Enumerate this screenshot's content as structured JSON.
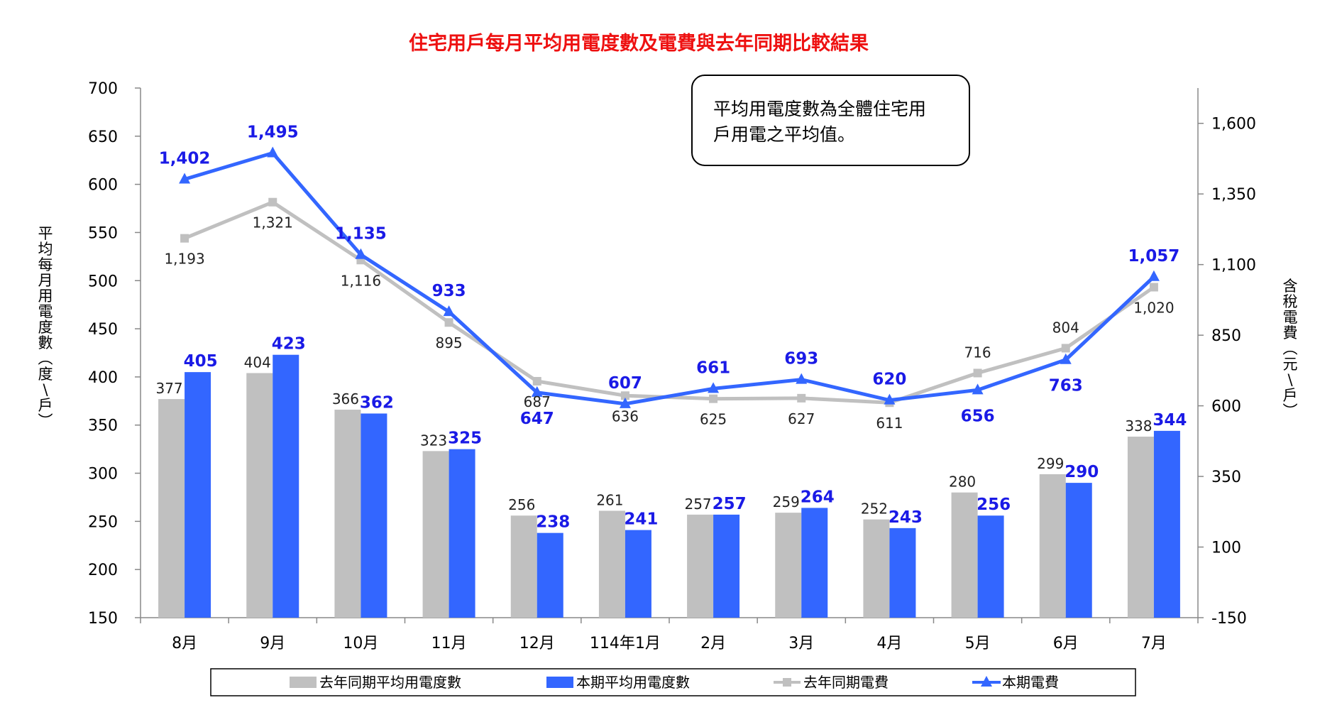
{
  "chart_data": {
    "type": "bar+line",
    "title": "住宅用戶每月平均用電度數及電費與去年同期比較結果",
    "categories": [
      "8月",
      "9月",
      "10月",
      "11月",
      "12月",
      "114年1月",
      "2月",
      "3月",
      "4月",
      "5月",
      "6月",
      "7月"
    ],
    "left_axis": {
      "label": "平均每月用電度數（度\\戶）",
      "label_chars": [
        "平",
        "均",
        "每",
        "月",
        "用",
        "電",
        "度",
        "數",
        "︵",
        "度",
        "\\",
        "戶",
        "︶"
      ],
      "range": [
        150,
        700
      ],
      "ticks": [
        150,
        200,
        250,
        300,
        350,
        400,
        450,
        500,
        550,
        600,
        650,
        700
      ]
    },
    "right_axis": {
      "label": "含稅電費（元\\戶）",
      "label_chars": [
        "含",
        "稅",
        "電",
        "費",
        "︵",
        "元",
        "\\",
        "戶",
        "︶"
      ],
      "range": [
        -150,
        1725
      ],
      "ticks": [
        -150,
        100,
        350,
        600,
        850,
        1100,
        1350,
        1600
      ],
      "tick_labels": [
        "-150",
        "100",
        "350",
        "600",
        "850",
        "1,100",
        "1,350",
        "1,600"
      ]
    },
    "series": [
      {
        "name": "去年同期平均用電度數",
        "type": "bar",
        "axis": "left",
        "color": "#c0c0c0",
        "values": [
          377,
          404,
          366,
          323,
          256,
          261,
          257,
          259,
          252,
          280,
          299,
          338
        ]
      },
      {
        "name": "本期平均用電度數",
        "type": "bar",
        "axis": "left",
        "color": "#3366ff",
        "values": [
          405,
          423,
          362,
          325,
          238,
          241,
          257,
          264,
          243,
          256,
          290,
          344
        ]
      },
      {
        "name": "去年同期電費",
        "type": "line",
        "axis": "right",
        "color": "#c0c0c0",
        "marker": "square",
        "values": [
          1193,
          1321,
          1116,
          895,
          687,
          636,
          625,
          627,
          611,
          716,
          804,
          1020
        ],
        "labels": [
          "1,193",
          "1,321",
          "1,116",
          "895",
          "687",
          "636",
          "625",
          "627",
          "611",
          "716",
          "804",
          "1,020"
        ]
      },
      {
        "name": "本期電費",
        "type": "line",
        "axis": "right",
        "color": "#3366ff",
        "marker": "triangle",
        "values": [
          1402,
          1495,
          1135,
          933,
          647,
          607,
          661,
          693,
          620,
          656,
          763,
          1057
        ],
        "labels": [
          "1,402",
          "1,495",
          "1,135",
          "933",
          "647",
          "607",
          "661",
          "693",
          "620",
          "656",
          "763",
          "1,057"
        ]
      }
    ],
    "note": [
      "平均用電度數為全體住宅用",
      "戶用電之平均值。"
    ],
    "legend_position": "bottom"
  }
}
